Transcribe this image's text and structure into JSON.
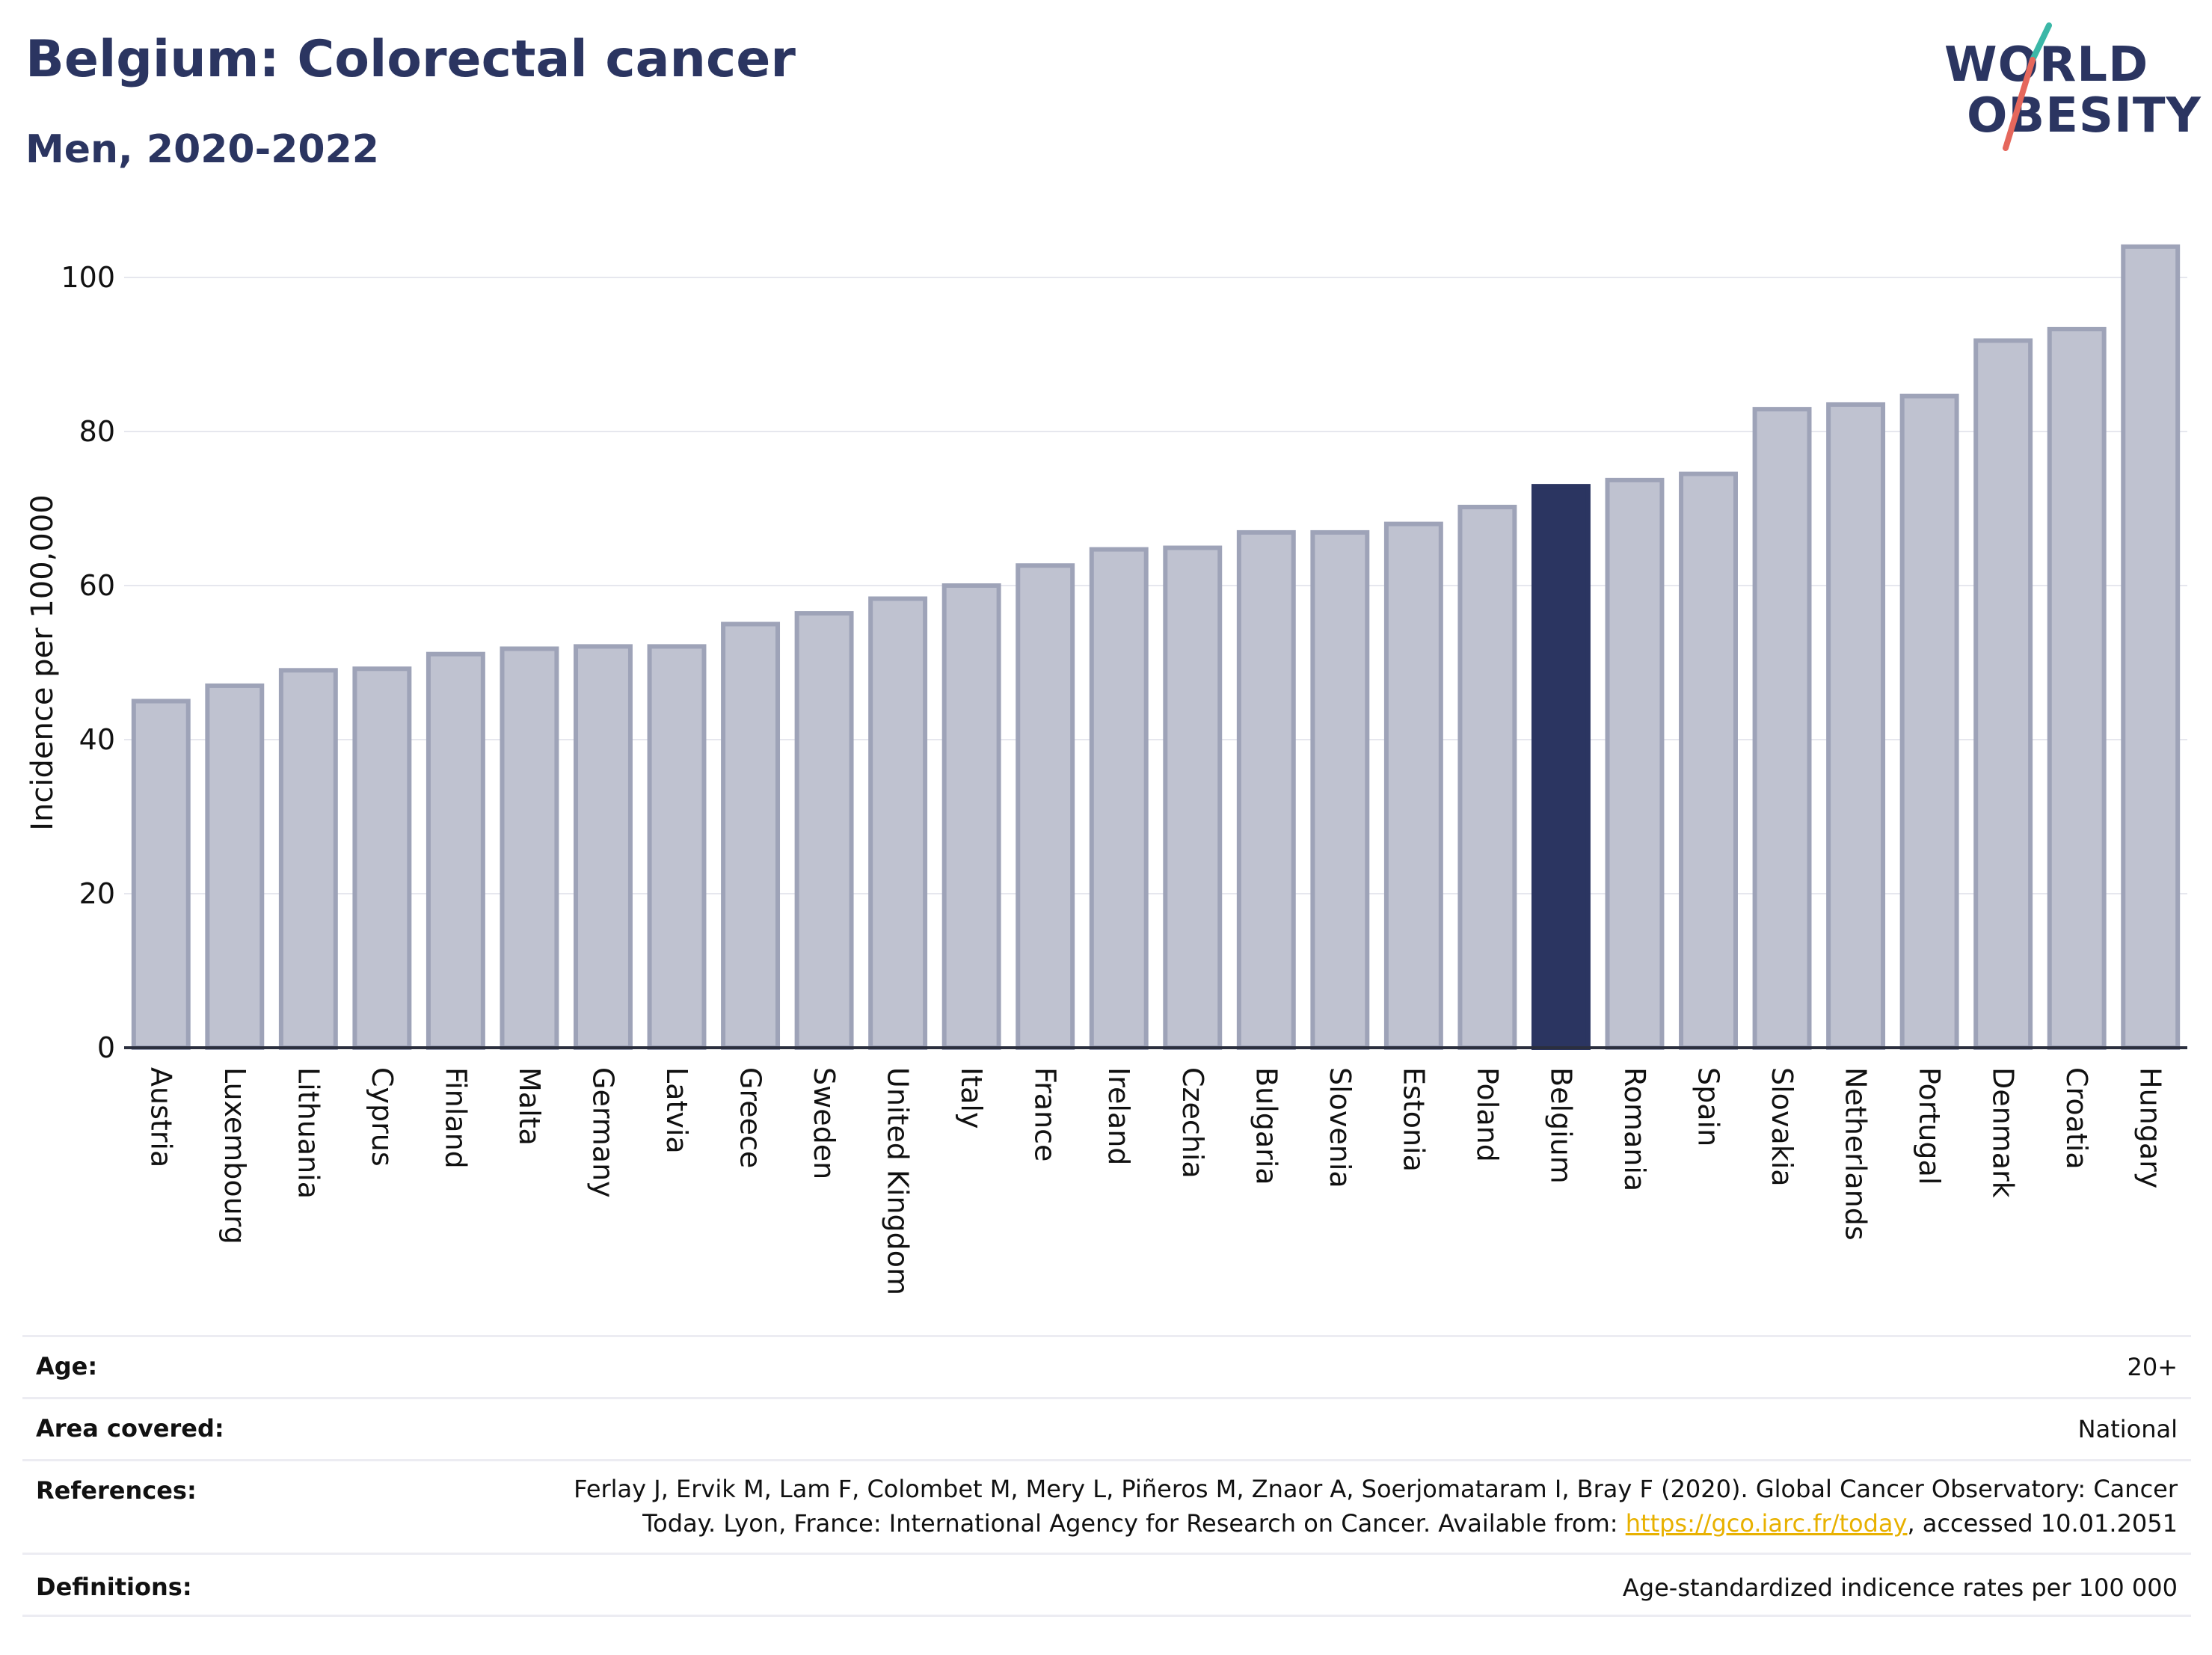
{
  "title": "Belgium: Colorectal cancer",
  "subtitle": "Men, 2020-2022",
  "logo": {
    "line1": "WORLD",
    "line2": "OBESITY"
  },
  "colors": {
    "bar": "#bfc2d0",
    "bar_stroke": "#9ea3b8",
    "highlight": "#2b3561",
    "title": "#2b3561",
    "link": "#e8b100",
    "logo_teal": "#3bb7a7",
    "logo_red": "#e5675c"
  },
  "chart_data": {
    "type": "bar",
    "title": "Belgium: Colorectal cancer",
    "ylabel": "Incidence per 100,000",
    "xlabel": "",
    "ylim": [
      0,
      108
    ],
    "yticks": [
      0,
      20,
      40,
      60,
      80,
      100
    ],
    "grid": true,
    "highlight": "Belgium",
    "categories": [
      "Austria",
      "Luxembourg",
      "Lithuania",
      "Cyprus",
      "Finland",
      "Malta",
      "Germany",
      "Latvia",
      "Greece",
      "Sweden",
      "United Kingdom",
      "Italy",
      "France",
      "Ireland",
      "Czechia",
      "Bulgaria",
      "Slovenia",
      "Estonia",
      "Poland",
      "Belgium",
      "Romania",
      "Spain",
      "Slovakia",
      "Netherlands",
      "Portugal",
      "Denmark",
      "Croatia",
      "Hungary"
    ],
    "values": [
      45.0,
      47.0,
      49.0,
      49.2,
      51.1,
      51.8,
      52.1,
      52.1,
      55.0,
      56.4,
      58.3,
      60.0,
      62.6,
      64.7,
      64.9,
      66.9,
      66.9,
      68.0,
      70.2,
      72.9,
      73.7,
      74.5,
      82.9,
      83.5,
      84.6,
      91.8,
      93.3,
      104.0
    ]
  },
  "info": {
    "age_label": "Age:",
    "age_value": "20+",
    "area_label": "Area covered:",
    "area_value": "National",
    "ref_label": "References:",
    "ref_line1": "Ferlay J, Ervik M, Lam F, Colombet M, Mery L, Piñeros M, Znaor A, Soerjomataram I, Bray F (2020). Global Cancer Observatory: Cancer",
    "ref_line2_pre": "Today. Lyon, France: International Agency for Research on Cancer. Available from: ",
    "ref_link": "https://gco.iarc.fr/today",
    "ref_line2_post": ", accessed 10.01.2051",
    "def_label": "Definitions:",
    "def_value": "Age-standardized indicence rates per 100 000"
  }
}
